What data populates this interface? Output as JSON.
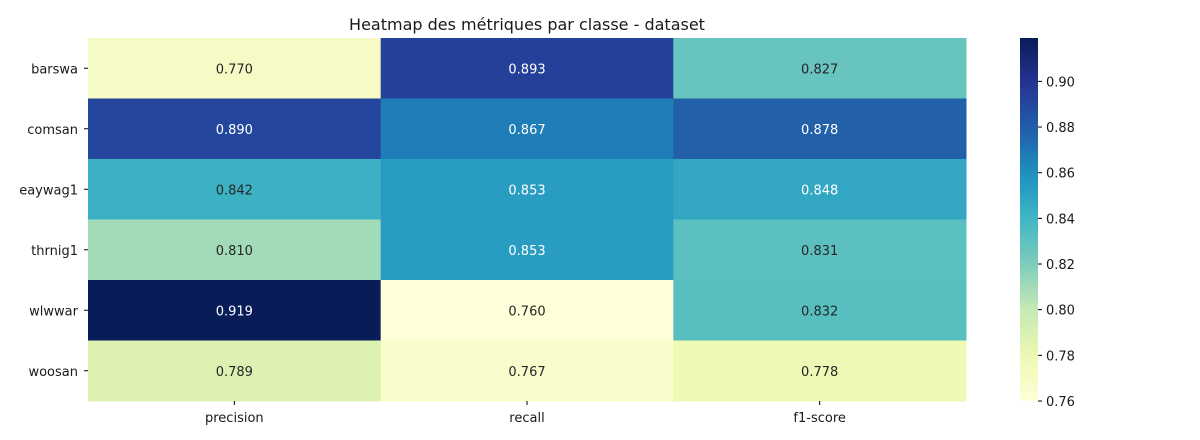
{
  "chart_data": {
    "type": "heatmap",
    "title": "Heatmap des métriques par classe - dataset",
    "columns": [
      "precision",
      "recall",
      "f1-score"
    ],
    "rows": [
      "barswa",
      "comsan",
      "eaywag1",
      "thrnig1",
      "wlwwar",
      "woosan"
    ],
    "values": [
      [
        0.77,
        0.893,
        0.827
      ],
      [
        0.89,
        0.867,
        0.878
      ],
      [
        0.842,
        0.853,
        0.848
      ],
      [
        0.81,
        0.853,
        0.831
      ],
      [
        0.919,
        0.76,
        0.832
      ],
      [
        0.789,
        0.767,
        0.778
      ]
    ],
    "value_format": "0.000",
    "colormap": "YlGnBu",
    "colorbar": {
      "vmin": 0.76,
      "vmax": 0.919,
      "ticks": [
        0.76,
        0.78,
        0.8,
        0.82,
        0.84,
        0.86,
        0.88,
        0.9
      ],
      "tick_labels": [
        "0.76",
        "0.78",
        "0.80",
        "0.82",
        "0.84",
        "0.86",
        "0.88",
        "0.90"
      ]
    }
  }
}
